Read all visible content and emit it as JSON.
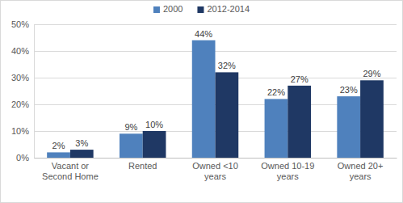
{
  "chart_data": {
    "type": "bar",
    "categories": [
      "Vacant or Second Home",
      "Rented",
      "Owned <10 years",
      "Owned 10-19 years",
      "Owned 20+ years"
    ],
    "series": [
      {
        "name": "2000",
        "color": "#4f81bd",
        "values": [
          2,
          9,
          44,
          22,
          23
        ],
        "value_labels": [
          "2%",
          "9%",
          "44%",
          "22%",
          "23%"
        ]
      },
      {
        "name": "2012-2014",
        "color": "#1f3864",
        "values": [
          3,
          10,
          32,
          27,
          29
        ],
        "value_labels": [
          "3%",
          "10%",
          "32%",
          "27%",
          "29%"
        ]
      }
    ],
    "ylim": [
      0,
      50
    ],
    "yticks": [
      {
        "value": 0,
        "label": "0%"
      },
      {
        "value": 10,
        "label": "10%"
      },
      {
        "value": 20,
        "label": "20%"
      },
      {
        "value": 30,
        "label": "30%"
      },
      {
        "value": 40,
        "label": "40%"
      },
      {
        "value": 50,
        "label": "50%"
      }
    ],
    "grid": true,
    "data_labels": true,
    "legend": "top"
  }
}
